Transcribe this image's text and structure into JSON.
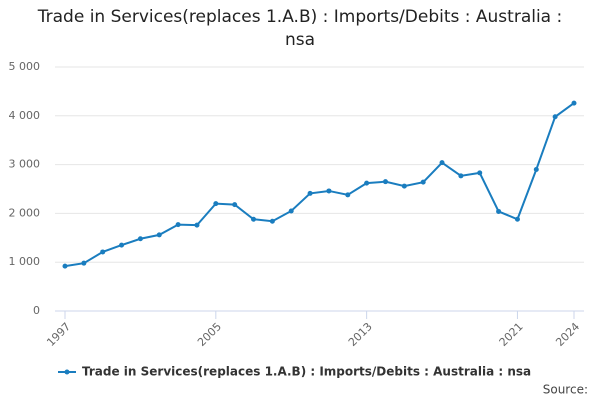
{
  "chart_data": {
    "type": "line",
    "title": "Trade in Services(replaces 1.A.B) : Imports/Debits : Australia : nsa",
    "x": [
      1997,
      1998,
      1999,
      2000,
      2001,
      2002,
      2003,
      2004,
      2005,
      2006,
      2007,
      2008,
      2009,
      2010,
      2011,
      2012,
      2013,
      2014,
      2015,
      2016,
      2017,
      2018,
      2019,
      2020,
      2021,
      2022,
      2023,
      2024
    ],
    "series": [
      {
        "name": "Trade in Services(replaces 1.A.B) : Imports/Debits : Australia : nsa",
        "color": "#1a7dbf",
        "values": [
          920,
          980,
          1210,
          1350,
          1480,
          1560,
          1770,
          1760,
          2200,
          2180,
          1880,
          1840,
          2050,
          2410,
          2460,
          2380,
          2620,
          2650,
          2560,
          2640,
          3040,
          2770,
          2830,
          2040,
          1880,
          2900,
          3980,
          4260
        ]
      }
    ],
    "xlim": [
      1997,
      2024
    ],
    "xticks": [
      1997,
      2005,
      2013,
      2021,
      2024
    ],
    "ylim": [
      0,
      5000
    ],
    "yticks": [
      0,
      {
        "value": 1000,
        "label": "1 000"
      },
      {
        "value": 2000,
        "label": "2 000"
      },
      {
        "value": 3000,
        "label": "3 000"
      },
      {
        "value": 4000,
        "label": "4 000"
      },
      {
        "value": 5000,
        "label": "5 000"
      }
    ],
    "grid": true,
    "legend": "bottom",
    "source": "Source:"
  }
}
